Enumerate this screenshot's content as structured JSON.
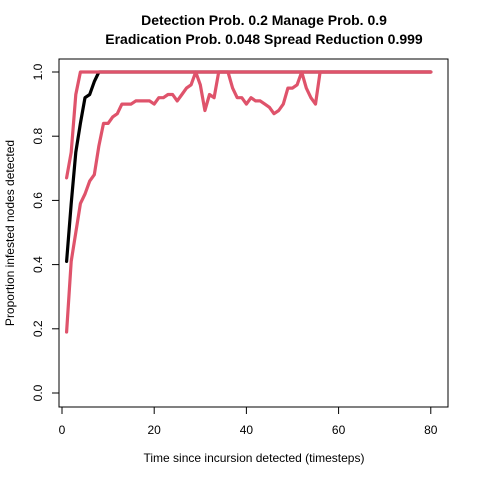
{
  "chart_data": {
    "type": "line",
    "title": "Detection Prob. 0.2 Manage Prob. 0.9",
    "subtitle": "Eradication Prob. 0.048 Spread Reduction 0.999",
    "xlabel": "Time since incursion detected (timesteps)",
    "ylabel": "Proportion infested nodes detected",
    "xlim": [
      0,
      82
    ],
    "ylim": [
      0,
      1.0
    ],
    "xticks": [
      0,
      20,
      40,
      60,
      80
    ],
    "yticks": [
      0.0,
      0.2,
      0.4,
      0.6,
      0.8,
      1.0
    ],
    "xtick_labels": [
      "0",
      "20",
      "40",
      "60",
      "80"
    ],
    "ytick_labels": [
      "0.0",
      "0.2",
      "0.4",
      "0.6",
      "0.8",
      "1.0"
    ],
    "grid": false,
    "series": [
      {
        "color": "#000000",
        "x": [
          1,
          2,
          3,
          4,
          5,
          6,
          7,
          8,
          9,
          80
        ],
        "y": [
          0.41,
          0.59,
          0.75,
          0.84,
          0.92,
          0.93,
          0.97,
          1.0,
          1.0,
          1.0
        ]
      },
      {
        "color": "#DF536B",
        "x": [
          1,
          2,
          3,
          4,
          5,
          80
        ],
        "y": [
          0.67,
          0.75,
          0.93,
          1.0,
          1.0,
          1.0
        ]
      },
      {
        "color": "#DF536B",
        "x": [
          1,
          2,
          3,
          4,
          5,
          6,
          7,
          8,
          9,
          10,
          11,
          12,
          13,
          14,
          15,
          16,
          17,
          18,
          19,
          20,
          21,
          22,
          23,
          24,
          25,
          26,
          27,
          28,
          29,
          30,
          31,
          32,
          33,
          34,
          35,
          36,
          37,
          38,
          39,
          40,
          41,
          42,
          43,
          44,
          45,
          46,
          47,
          48,
          49,
          50,
          51,
          52,
          53,
          54,
          55,
          56,
          57,
          80
        ],
        "y": [
          0.19,
          0.41,
          0.5,
          0.59,
          0.62,
          0.66,
          0.68,
          0.77,
          0.84,
          0.84,
          0.86,
          0.87,
          0.9,
          0.9,
          0.9,
          0.91,
          0.91,
          0.91,
          0.91,
          0.9,
          0.92,
          0.92,
          0.93,
          0.93,
          0.91,
          0.93,
          0.95,
          0.96,
          1.0,
          0.96,
          0.88,
          0.93,
          0.92,
          1.0,
          1.0,
          1.0,
          0.95,
          0.92,
          0.92,
          0.9,
          0.92,
          0.91,
          0.91,
          0.9,
          0.89,
          0.87,
          0.88,
          0.9,
          0.95,
          0.95,
          0.96,
          1.0,
          0.95,
          0.92,
          0.9,
          1.0,
          1.0,
          1.0
        ]
      }
    ]
  }
}
